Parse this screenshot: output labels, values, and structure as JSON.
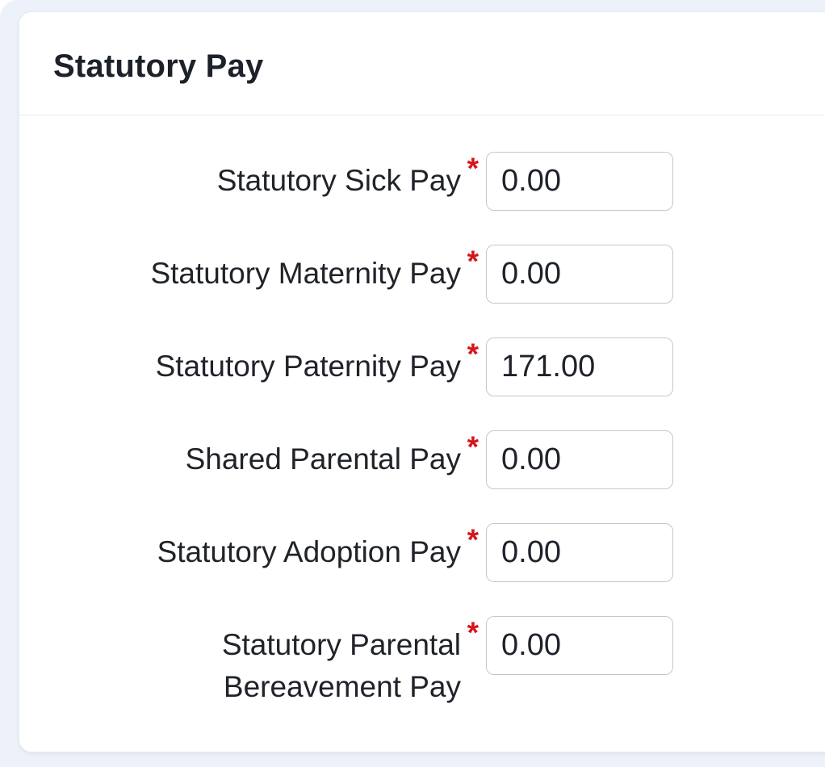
{
  "panel": {
    "title": "Statutory Pay"
  },
  "form": {
    "required_marker": "*",
    "fields": [
      {
        "label": "Statutory Sick Pay",
        "value": "0.00",
        "required": true
      },
      {
        "label": "Statutory Maternity Pay",
        "value": "0.00",
        "required": true
      },
      {
        "label": "Statutory Paternity Pay",
        "value": "171.00",
        "required": true
      },
      {
        "label": "Shared Parental Pay",
        "value": "0.00",
        "required": true
      },
      {
        "label": "Statutory Adoption Pay",
        "value": "0.00",
        "required": true
      },
      {
        "label": "Statutory Parental Bereavement Pay",
        "value": "0.00",
        "required": true
      }
    ]
  },
  "colors": {
    "page_background": "#edf2fa",
    "card_background": "#ffffff",
    "divider": "#e9ebef",
    "input_border": "#c0c9d2",
    "text": "#202329",
    "required_red": "#d4161c"
  }
}
